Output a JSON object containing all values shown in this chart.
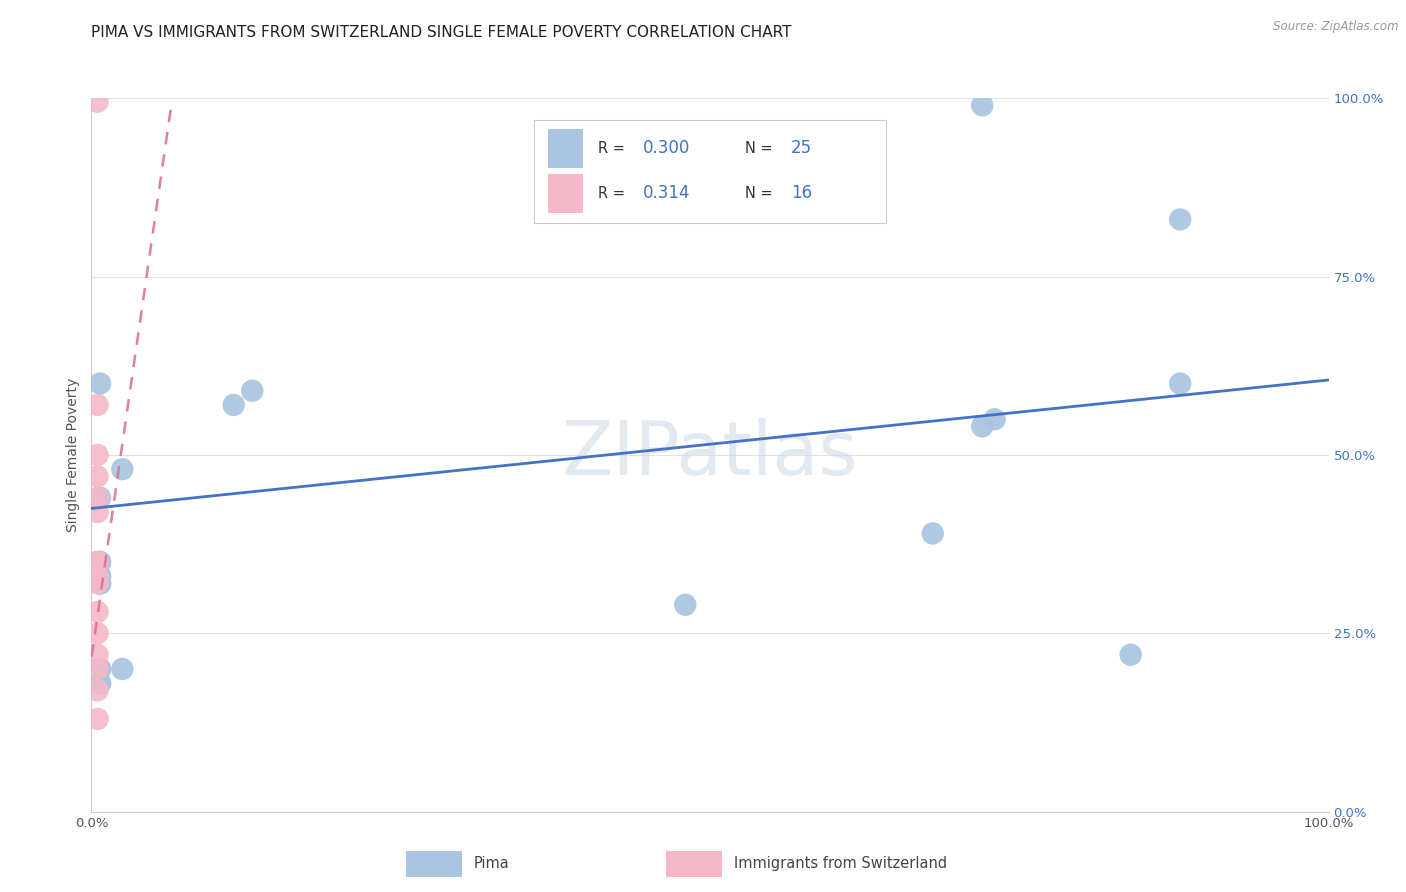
{
  "title": "PIMA VS IMMIGRANTS FROM SWITZERLAND SINGLE FEMALE POVERTY CORRELATION CHART",
  "source": "Source: ZipAtlas.com",
  "ylabel": "Single Female Poverty",
  "x_min": 0.0,
  "x_max": 1.0,
  "y_min": 0.0,
  "y_max": 1.0,
  "x_tick_labels_bottom": [
    "0.0%",
    "",
    "",
    "",
    "",
    "100.0%"
  ],
  "y_tick_labels_right": [
    "0.0%",
    "25.0%",
    "50.0%",
    "75.0%",
    "100.0%"
  ],
  "watermark": "ZIPatlas",
  "legend_pima_R": "0.300",
  "legend_pima_N": "25",
  "legend_swiss_R": "0.314",
  "legend_swiss_N": "16",
  "pima_color": "#a8c4e0",
  "swiss_color": "#f4b8c8",
  "trendline_pima_color": "#4472c4",
  "trendline_swiss_color": "#e07090",
  "pima_scatter_x": [
    0.007,
    0.007,
    0.007,
    0.007,
    0.007,
    0.007,
    0.007,
    0.007,
    0.007,
    0.007,
    0.007,
    0.007,
    0.007,
    0.025,
    0.025,
    0.115,
    0.13,
    0.48,
    0.68,
    0.72,
    0.73,
    0.84,
    0.88,
    0.88,
    0.72
  ],
  "pima_scatter_y": [
    0.44,
    0.35,
    0.35,
    0.33,
    0.33,
    0.32,
    0.32,
    0.32,
    0.2,
    0.2,
    0.18,
    0.18,
    0.6,
    0.48,
    0.2,
    0.57,
    0.59,
    0.29,
    0.39,
    0.54,
    0.55,
    0.22,
    0.6,
    0.83,
    0.99
  ],
  "swiss_scatter_x": [
    0.005,
    0.005,
    0.005,
    0.005,
    0.005,
    0.005,
    0.005,
    0.005,
    0.005,
    0.005,
    0.005,
    0.005,
    0.005,
    0.005,
    0.005,
    0.005
  ],
  "swiss_scatter_y": [
    0.995,
    0.57,
    0.5,
    0.47,
    0.44,
    0.42,
    0.35,
    0.35,
    0.33,
    0.32,
    0.28,
    0.25,
    0.22,
    0.2,
    0.17,
    0.13
  ],
  "pima_trend_x": [
    0.0,
    1.0
  ],
  "pima_trend_y": [
    0.425,
    0.605
  ],
  "swiss_trend_x": [
    -0.005,
    0.065
  ],
  "swiss_trend_y": [
    0.155,
    0.995
  ],
  "background_color": "#ffffff",
  "grid_color": "#dde3e8",
  "title_fontsize": 11,
  "axis_label_fontsize": 10,
  "tick_fontsize": 9.5,
  "right_tick_color": "#4472c4"
}
